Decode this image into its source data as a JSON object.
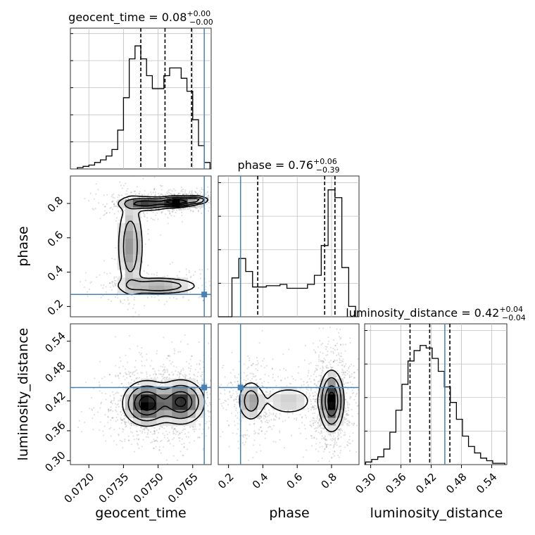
{
  "chart_data": {
    "type": "corner",
    "parameters": [
      "geocent_time",
      "phase",
      "luminosity_distance"
    ],
    "colors": {
      "truth": "#4682b4",
      "hist": "#000000",
      "grid": "#c0c0c0",
      "scatter": "#000000"
    },
    "marginals": {
      "geocent_time": {
        "title": {
          "name": "geocent_time",
          "value": "0.08",
          "plus": "+0.00",
          "minus": "−0.00"
        },
        "xlim": [
          0.0712,
          0.0773
        ],
        "bin_edges": [
          0.0715,
          0.07175,
          0.072,
          0.07225,
          0.0725,
          0.07275,
          0.073,
          0.07325,
          0.0735,
          0.07375,
          0.074,
          0.07425,
          0.0745,
          0.07475,
          0.075,
          0.07525,
          0.0755,
          0.07575,
          0.076,
          0.07625,
          0.0765,
          0.07675,
          0.077,
          0.07725
        ],
        "counts": [
          0.01,
          0.02,
          0.03,
          0.05,
          0.07,
          0.1,
          0.15,
          0.3,
          0.55,
          0.85,
          0.95,
          0.85,
          0.72,
          0.62,
          0.62,
          0.72,
          0.78,
          0.78,
          0.7,
          0.6,
          0.38,
          0.18,
          0.05
        ],
        "quantiles": [
          0.07425,
          0.0753,
          0.07645
        ],
        "truth": 0.077,
        "y_ticks": 5
      },
      "phase": {
        "title": {
          "name": "phase",
          "value": "0.76",
          "plus": "+0.06",
          "minus": "−0.39"
        },
        "xlim": [
          0.14,
          0.96
        ],
        "bin_edges": [
          0.14,
          0.18,
          0.22,
          0.26,
          0.3,
          0.34,
          0.38,
          0.42,
          0.46,
          0.5,
          0.54,
          0.58,
          0.62,
          0.66,
          0.7,
          0.74,
          0.78,
          0.82,
          0.86,
          0.9,
          0.94
        ],
        "counts": [
          0.0,
          0.0,
          0.3,
          0.45,
          0.35,
          0.23,
          0.23,
          0.24,
          0.24,
          0.25,
          0.22,
          0.22,
          0.22,
          0.25,
          0.32,
          0.55,
          0.98,
          0.92,
          0.38,
          0.08
        ],
        "quantiles": [
          0.37,
          0.76,
          0.82
        ],
        "truth": 0.27,
        "y_ticks": 4
      },
      "luminosity_distance": {
        "title": {
          "name": "luminosity_distance",
          "value": "0.42",
          "plus": "+0.04",
          "minus": "−0.04"
        },
        "xlim": [
          0.288,
          0.57
        ],
        "bin_edges": [
          0.29,
          0.302,
          0.314,
          0.326,
          0.338,
          0.35,
          0.362,
          0.374,
          0.386,
          0.398,
          0.41,
          0.422,
          0.434,
          0.446,
          0.458,
          0.47,
          0.482,
          0.494,
          0.506,
          0.518,
          0.53,
          0.542,
          0.554,
          0.566
        ],
        "counts": [
          0.02,
          0.04,
          0.06,
          0.12,
          0.25,
          0.42,
          0.62,
          0.8,
          0.88,
          0.92,
          0.9,
          0.82,
          0.72,
          0.6,
          0.48,
          0.35,
          0.22,
          0.14,
          0.09,
          0.05,
          0.03,
          0.01,
          0.01
        ],
        "quantiles": [
          0.378,
          0.417,
          0.457
        ],
        "truth": 0.447,
        "y_ticks": 4
      }
    },
    "axes": {
      "geocent_time": {
        "label": "geocent_time",
        "ticks": [
          0.072,
          0.0735,
          0.075,
          0.0765
        ],
        "tick_labels": [
          "0.0720",
          "0.0735",
          "0.0750",
          "0.0765"
        ]
      },
      "phase": {
        "label": "phase",
        "lim": [
          0.14,
          0.96
        ],
        "ticks": [
          0.2,
          0.4,
          0.6,
          0.8
        ],
        "tick_labels": [
          "0.2",
          "0.4",
          "0.6",
          "0.8"
        ]
      },
      "luminosity_distance": {
        "label": "luminosity_distance",
        "lim": [
          0.292,
          0.575
        ],
        "ticks": [
          0.3,
          0.36,
          0.42,
          0.48,
          0.54
        ],
        "tick_labels": [
          "0.30",
          "0.36",
          "0.42",
          "0.48",
          "0.54"
        ]
      }
    },
    "joint_densities": [
      {
        "x": "geocent_time",
        "y": "phase",
        "blobs": [
          {
            "cx": 0.0745,
            "cy": 0.8,
            "sx": 0.0006,
            "sy": 0.02,
            "w": 0.55
          },
          {
            "cx": 0.0758,
            "cy": 0.81,
            "sx": 0.0004,
            "sy": 0.015,
            "w": 0.8
          },
          {
            "cx": 0.0766,
            "cy": 0.82,
            "sx": 0.0003,
            "sy": 0.012,
            "w": 0.5
          },
          {
            "cx": 0.0738,
            "cy": 0.55,
            "sx": 0.0003,
            "sy": 0.15,
            "w": 0.35
          },
          {
            "cx": 0.075,
            "cy": 0.32,
            "sx": 0.0009,
            "sy": 0.025,
            "w": 0.4
          }
        ]
      },
      {
        "x": "geocent_time",
        "y": "luminosity_distance",
        "blobs": [
          {
            "cx": 0.0745,
            "cy": 0.415,
            "sx": 0.0005,
            "sy": 0.022,
            "w": 0.9
          },
          {
            "cx": 0.076,
            "cy": 0.418,
            "sx": 0.0005,
            "sy": 0.022,
            "w": 0.8
          }
        ]
      },
      {
        "x": "phase",
        "y": "luminosity_distance",
        "blobs": [
          {
            "cx": 0.8,
            "cy": 0.42,
            "sx": 0.035,
            "sy": 0.03,
            "w": 1.0
          },
          {
            "cx": 0.33,
            "cy": 0.42,
            "sx": 0.04,
            "sy": 0.022,
            "w": 0.45
          },
          {
            "cx": 0.55,
            "cy": 0.42,
            "sx": 0.09,
            "sy": 0.018,
            "w": 0.25
          }
        ]
      }
    ],
    "truths": {
      "geocent_time": 0.077,
      "phase": 0.27,
      "luminosity_distance": 0.447
    },
    "grid": true
  }
}
